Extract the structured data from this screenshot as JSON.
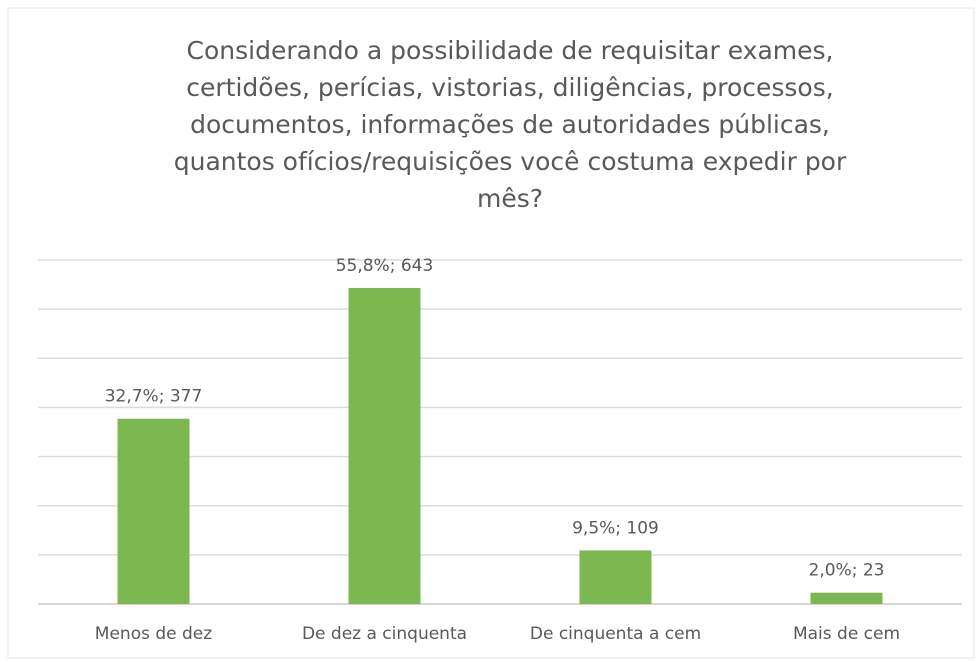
{
  "chart_data": {
    "type": "bar",
    "title": [
      "Considerando a possibilidade de requisitar exames,",
      "certidões, perícias, vistorias, diligências, processos,",
      "documentos, informações de autoridades públicas,",
      "quantos ofícios/requisições você costuma expedir por",
      "mês?"
    ],
    "categories": [
      "Menos de dez",
      "De dez a cinquenta",
      "De cinquenta a cem",
      "Mais de cem"
    ],
    "values": [
      377,
      643,
      109,
      23
    ],
    "value_labels": [
      "32,7%; 377",
      "55,8%; 643",
      "9,5%; 109",
      "2,0%; 23"
    ],
    "color": "#7cb84f",
    "ylim": [
      0,
      700
    ],
    "yticks": [
      0,
      100,
      200,
      300,
      400,
      500,
      600,
      700
    ],
    "grid": true
  }
}
